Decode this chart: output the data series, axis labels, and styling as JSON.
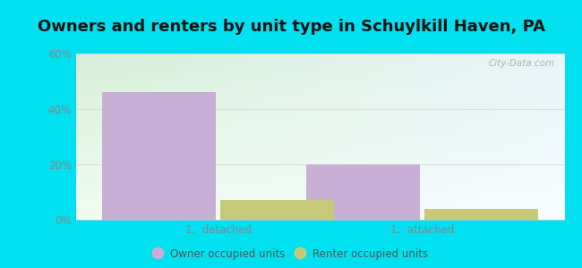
{
  "title": "Owners and renters by unit type in Schuylkill Haven, PA",
  "groups": [
    "1,  detached",
    "1,  attached"
  ],
  "series": [
    {
      "label": "Owner occupied units",
      "values": [
        46,
        20
      ],
      "color": "#c9aed6"
    },
    {
      "label": "Renter occupied units",
      "values": [
        7,
        4
      ],
      "color": "#c8c87a"
    }
  ],
  "ylim": [
    0,
    60
  ],
  "yticks": [
    0,
    20,
    40,
    60
  ],
  "ytick_labels": [
    "0%",
    "20%",
    "40%",
    "60%"
  ],
  "background_outer": "#00e0f0",
  "background_inner_topleft": "#d6eed8",
  "background_inner_topright": "#e8f4f8",
  "background_inner_bottom": "#f0f8f0",
  "bar_width": 0.28,
  "group_positions": [
    0.25,
    0.75
  ],
  "title_fontsize": 13,
  "watermark": "City-Data.com",
  "tick_color": "#888888",
  "grid_color": "#dddddd"
}
